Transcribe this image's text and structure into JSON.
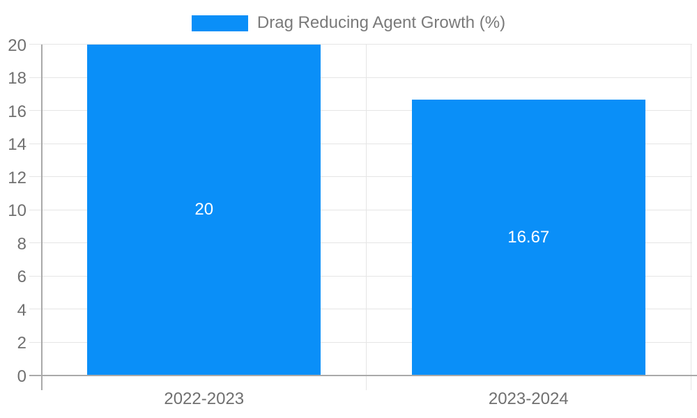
{
  "chart_data": {
    "type": "bar",
    "title": "",
    "legend": {
      "label": "Drag Reducing Agent Growth (%)",
      "position": "top"
    },
    "categories": [
      "2022-2023",
      "2023-2024"
    ],
    "values": [
      20,
      16.67
    ],
    "value_labels": [
      "20",
      "16.67"
    ],
    "ylabel": "",
    "xlabel": "",
    "ylim": [
      0,
      20
    ],
    "ytick_step": 2,
    "grid": true,
    "colors": {
      "bar": "#0a8ff8",
      "bar_label": "#ffffff",
      "axis_text": "#707070",
      "legend_text": "#7a7a7a",
      "gridline": "#e5e5e5",
      "axis_line": "#a9a9a9",
      "background": "#ffffff"
    }
  }
}
